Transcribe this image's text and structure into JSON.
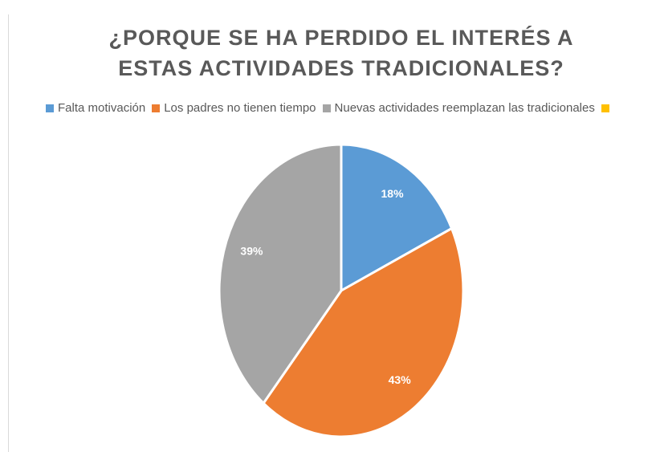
{
  "chart_data": {
    "type": "pie",
    "title": "¿PORQUE SE HA PERDIDO EL INTERÉS A ESTAS ACTIVIDADES TRADICIONALES?",
    "categories": [
      "Falta motivación",
      "Los padres no tienen tiempo",
      "Nuevas actividades reemplazan las tradicionales",
      null
    ],
    "values": [
      18,
      43,
      39,
      0
    ],
    "value_labels": [
      "18%",
      "43%",
      "39%",
      null
    ],
    "colors": [
      "#5b9bd5",
      "#ed7d31",
      "#a5a5a5",
      "#ffc000"
    ],
    "legend": "top"
  }
}
